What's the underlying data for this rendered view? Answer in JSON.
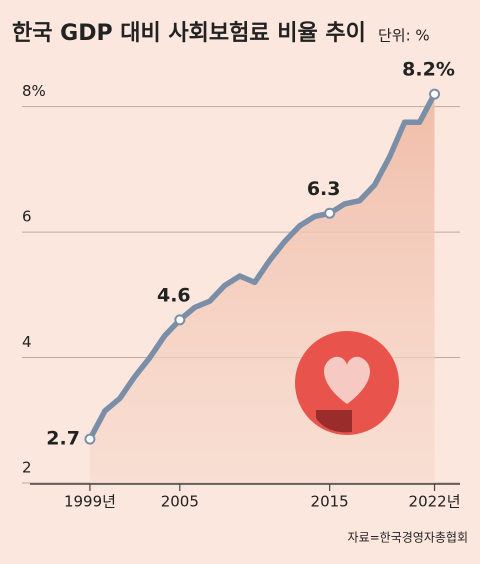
{
  "chart_data": {
    "type": "line",
    "title": "한국 GDP 대비 사회보험료 비율 추이",
    "subtitle": "단위: %",
    "source": "자료=한국경영자총협회",
    "x": [
      1999,
      2000,
      2001,
      2002,
      2003,
      2004,
      2005,
      2006,
      2007,
      2008,
      2009,
      2010,
      2011,
      2012,
      2013,
      2014,
      2015,
      2016,
      2017,
      2018,
      2019,
      2020,
      2021,
      2022
    ],
    "series": [
      {
        "name": "GDP 대비 사회보험료 비율",
        "color": "#7a8ea8",
        "values": [
          2.7,
          3.15,
          3.35,
          3.7,
          4.0,
          4.35,
          4.6,
          4.8,
          4.9,
          5.15,
          5.3,
          5.2,
          5.55,
          5.85,
          6.1,
          6.25,
          6.3,
          6.45,
          6.5,
          6.75,
          7.2,
          7.75,
          7.75,
          8.2
        ],
        "value_labels": [
          "2.7",
          null,
          null,
          null,
          null,
          null,
          "4.6",
          null,
          null,
          null,
          null,
          null,
          null,
          null,
          null,
          null,
          "6.3",
          null,
          null,
          null,
          null,
          null,
          null,
          "8.2%"
        ]
      }
    ],
    "xlim": [
      1995,
      2023.7
    ],
    "ylim": [
      2,
      8.6
    ],
    "xticks": [
      {
        "value": 1999,
        "label": "1999년"
      },
      2005,
      2015,
      {
        "value": 2022,
        "label": "2022년"
      }
    ],
    "yticks": [
      2,
      4,
      6,
      {
        "value": 8,
        "label": "8%"
      }
    ],
    "grid": true,
    "area_fill": "#f0c4b0"
  }
}
